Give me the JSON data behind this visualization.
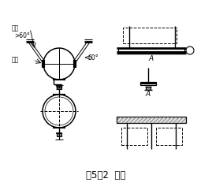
{
  "title": "图5－2  吊架",
  "bg_color": "#ffffff",
  "line_color": "#000000",
  "label_diugan": "吊杆",
  "label_angle1": ">60°",
  "label_angle2": "60°",
  "label_baohuo": "抱箍",
  "label_A1": "A",
  "label_A2": "A",
  "title_fontsize": 8.5
}
